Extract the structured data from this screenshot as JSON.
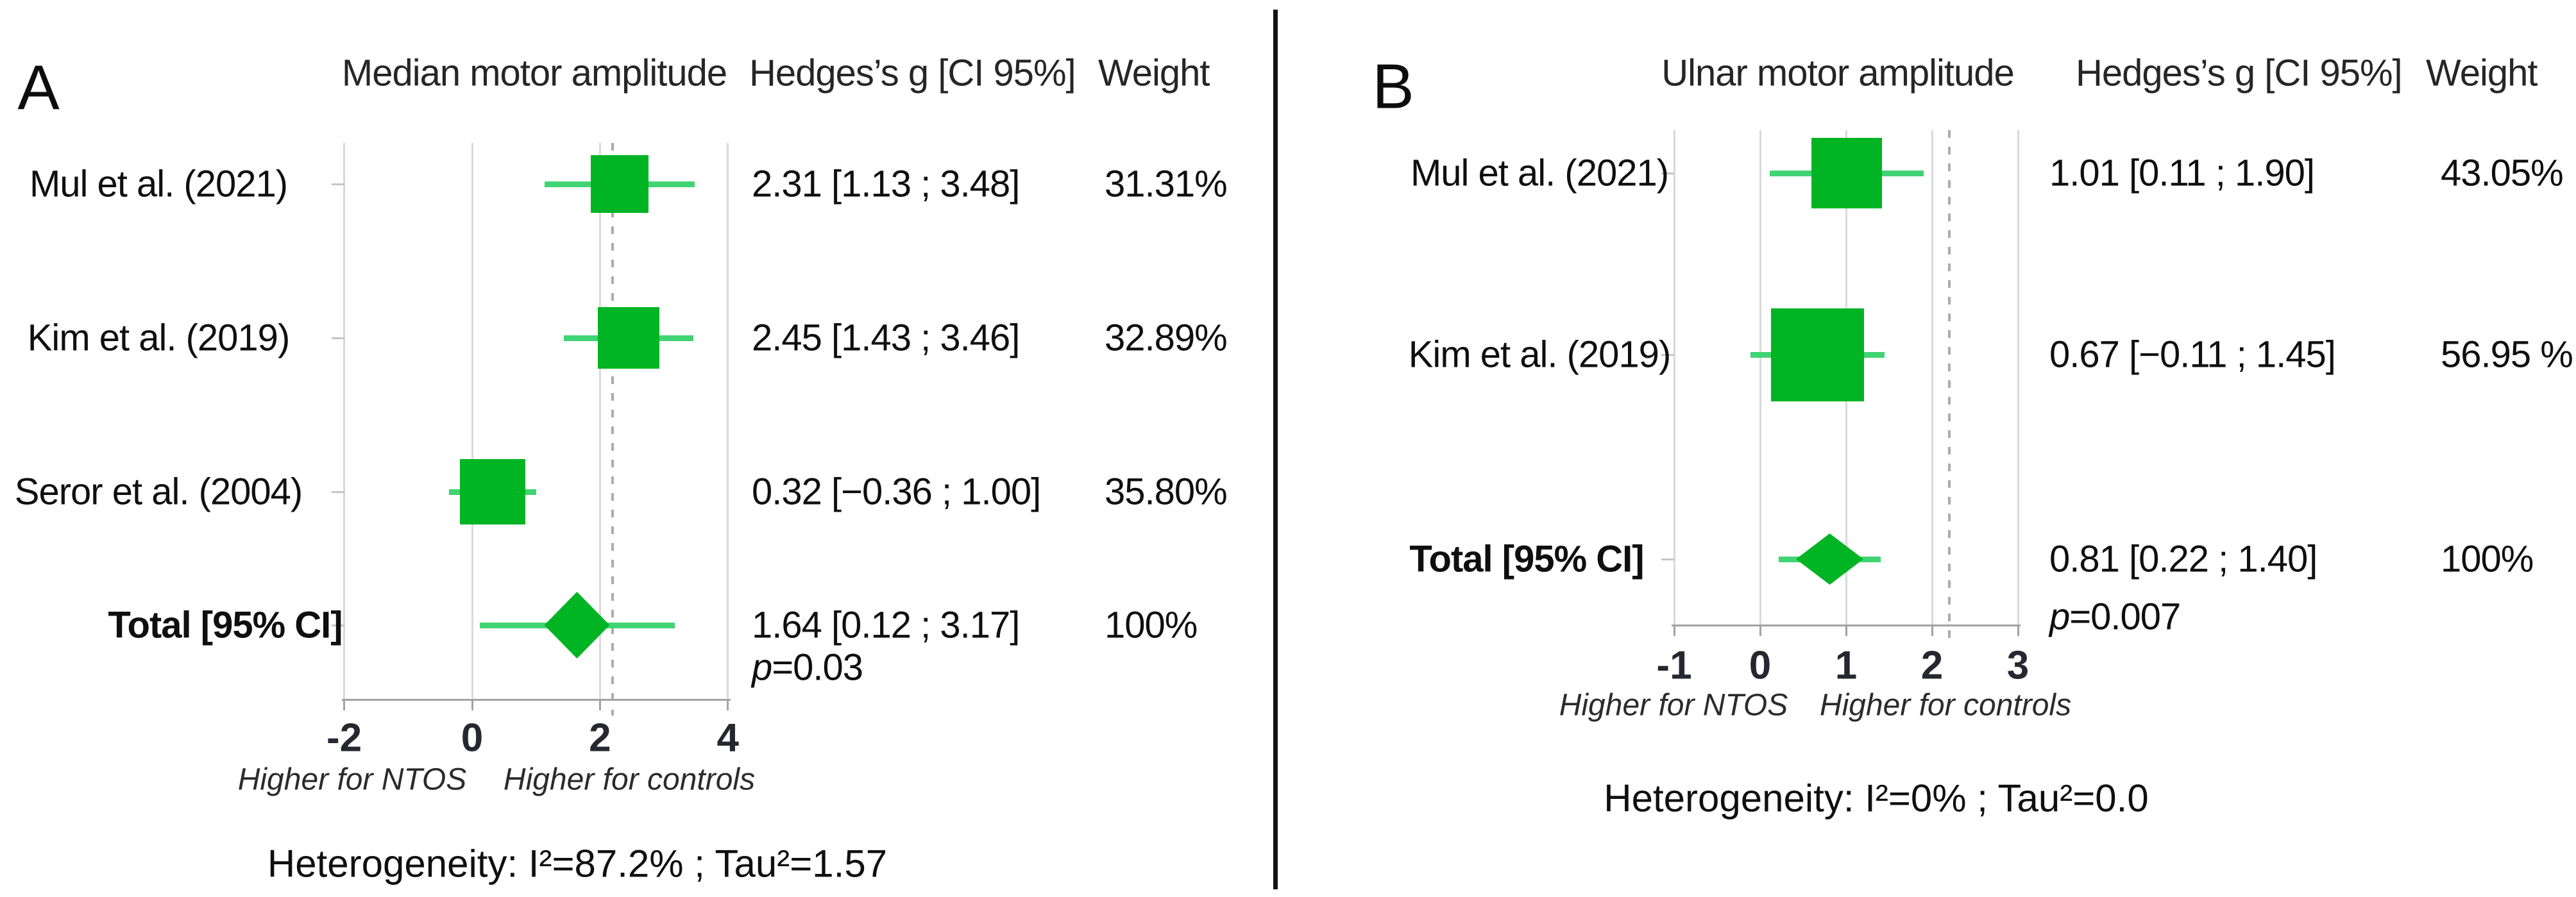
{
  "colors": {
    "marker_green": "#00b423",
    "ci_line_green": "#41d474",
    "gridline_gray": "#d9d9d9",
    "dashed_gray": "#ababab",
    "axis_gray": "#a3a3a3",
    "row_tick_gray": "#c6c6c6",
    "divider_black": "#141414"
  },
  "divider": {
    "present": true
  },
  "chart_data": [
    {
      "type": "forest",
      "panel_label": "A",
      "title": "Median motor amplitude",
      "effect_header": "Hedges’s g [CI 95%]",
      "weight_header": "Weight",
      "x_axis": {
        "range": [
          -2,
          4
        ],
        "tick_values": [
          -2,
          0,
          2,
          4
        ],
        "tick_labels": [
          "-2",
          "0",
          "2",
          "4"
        ],
        "dashed_guide_value": 2.2,
        "left_direction_label": "Higher for NTOS",
        "right_direction_label": "Higher for controls",
        "grid": true
      },
      "rows": [
        {
          "type": "study",
          "label": "Mul et al. (2021)",
          "g": 2.31,
          "ci_low": 1.13,
          "ci_high": 3.48,
          "weight_pct": 31.31,
          "estimate_text": "2.31 [1.13 ; 3.48]",
          "weight_text": "31.31%"
        },
        {
          "type": "study",
          "label": "Kim et al. (2019)",
          "g": 2.45,
          "ci_low": 1.43,
          "ci_high": 3.46,
          "weight_pct": 32.89,
          "estimate_text": "2.45 [1.43 ; 3.46]",
          "weight_text": "32.89%"
        },
        {
          "type": "study",
          "label": "Seror et al. (2004)",
          "g": 0.32,
          "ci_low": -0.36,
          "ci_high": 1.0,
          "weight_pct": 35.8,
          "estimate_text": "0.32 [−0.36 ; 1.00]",
          "weight_text": "35.80%"
        },
        {
          "type": "total",
          "label": "Total [95% CI]",
          "g": 1.64,
          "ci_low": 0.12,
          "ci_high": 3.17,
          "weight_pct": 100,
          "estimate_text": "1.64 [0.12 ; 3.17]",
          "weight_text": "100%",
          "p_text": "p=0.03"
        }
      ],
      "heterogeneity_text": "Heterogeneity: I²=87.2% ; Tau²=1.57"
    },
    {
      "type": "forest",
      "panel_label": "B",
      "title": "Ulnar motor amplitude",
      "effect_header": "Hedges’s g [CI 95%]",
      "weight_header": "Weight",
      "x_axis": {
        "range": [
          -1,
          3
        ],
        "tick_values": [
          -1,
          0,
          1,
          2,
          3
        ],
        "tick_labels": [
          "-1",
          "0",
          "1",
          "2",
          "3"
        ],
        "dashed_guide_value": 2.2,
        "left_direction_label": "Higher for NTOS",
        "right_direction_label": "Higher for controls",
        "grid": true
      },
      "rows": [
        {
          "type": "study",
          "label": "Mul et al. (2021)",
          "g": 1.01,
          "ci_low": 0.11,
          "ci_high": 1.9,
          "weight_pct": 43.05,
          "estimate_text": "1.01 [0.11 ; 1.90]",
          "weight_text": "43.05%"
        },
        {
          "type": "study",
          "label": "Kim et al. (2019)",
          "g": 0.67,
          "ci_low": -0.11,
          "ci_high": 1.45,
          "weight_pct": 56.95,
          "estimate_text": "0.67 [−0.11 ; 1.45]",
          "weight_text": "56.95 %"
        },
        {
          "type": "total",
          "label": "Total [95% CI]",
          "g": 0.81,
          "ci_low": 0.22,
          "ci_high": 1.4,
          "weight_pct": 100,
          "estimate_text": "0.81 [0.22 ; 1.40]",
          "weight_text": "100%",
          "p_text": "p=0.007"
        }
      ],
      "heterogeneity_text": "Heterogeneity: I²=0% ; Tau²=0.0"
    }
  ]
}
